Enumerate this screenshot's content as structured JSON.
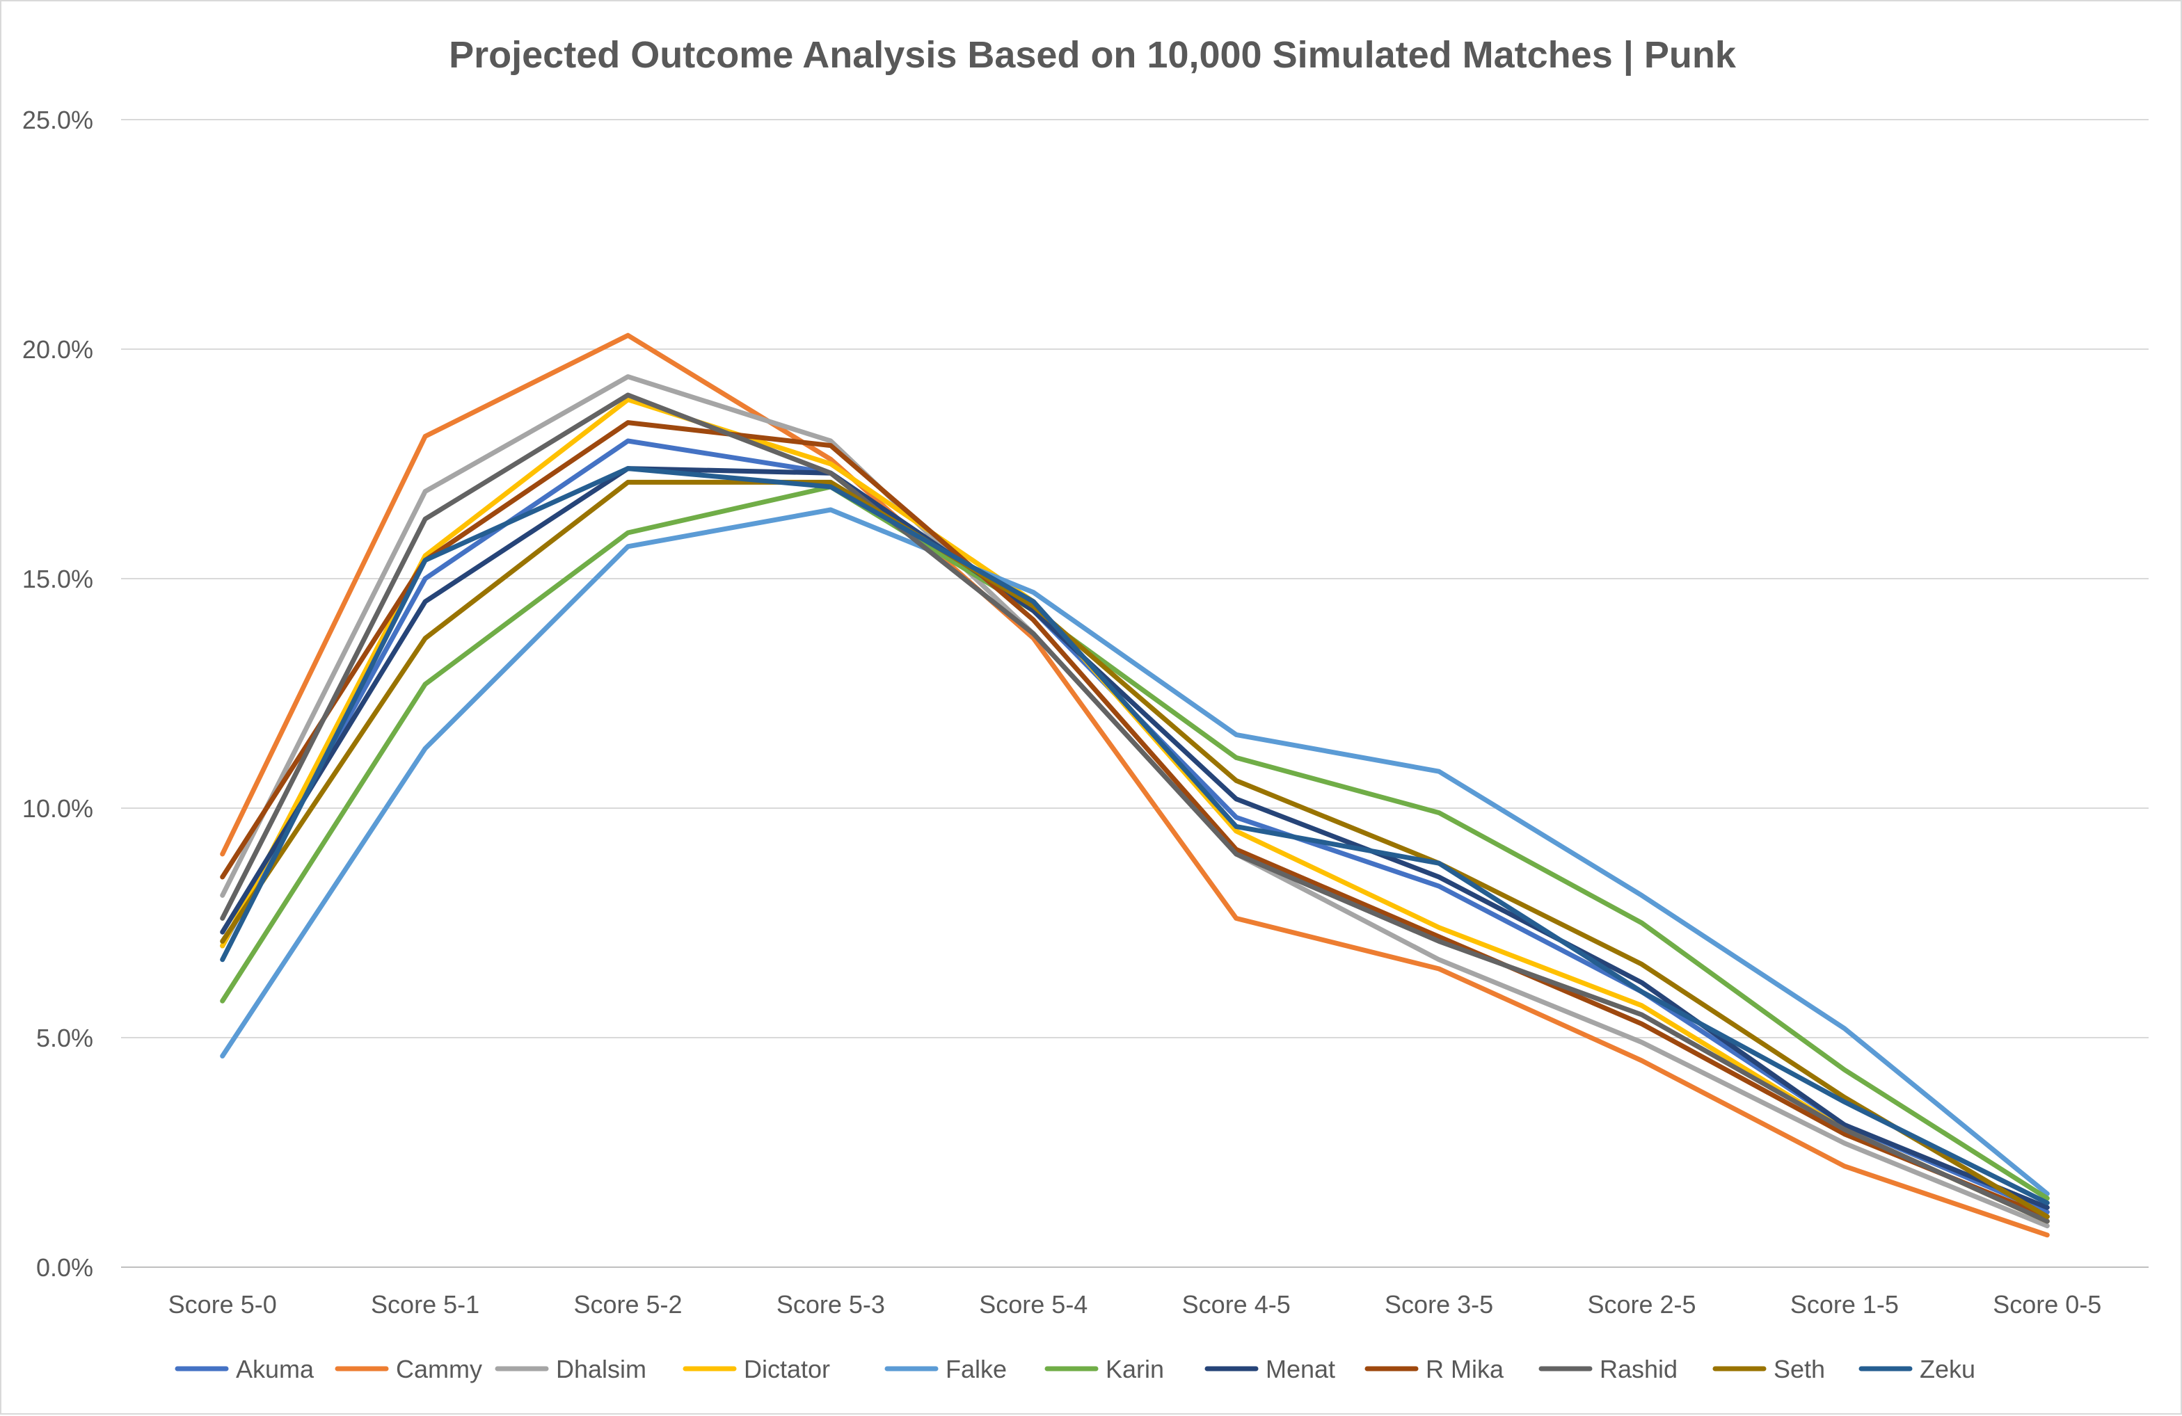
{
  "chart_data": {
    "type": "line",
    "title": "Projected Outcome Analysis Based on 10,000 Simulated Matches | Punk",
    "xlabel": "",
    "ylabel": "",
    "categories": [
      "Score 5-0",
      "Score 5-1",
      "Score 5-2",
      "Score 5-3",
      "Score 5-4",
      "Score 4-5",
      "Score 3-5",
      "Score 2-5",
      "Score 1-5",
      "Score 0-5"
    ],
    "y_ticks": [
      "0.0%",
      "5.0%",
      "10.0%",
      "15.0%",
      "20.0%",
      "25.0%"
    ],
    "ylim": [
      0,
      25
    ],
    "grid": true,
    "legend_position": "bottom",
    "series": [
      {
        "name": "Akuma",
        "color": "#4472C4",
        "values": [
          7.0,
          15.0,
          18.0,
          17.3,
          14.3,
          9.8,
          8.3,
          6.0,
          3.1,
          1.2
        ]
      },
      {
        "name": "Cammy",
        "color": "#ED7D31",
        "values": [
          9.0,
          18.1,
          20.3,
          17.6,
          13.7,
          7.6,
          6.5,
          4.5,
          2.2,
          0.7
        ]
      },
      {
        "name": "Dhalsim",
        "color": "#A5A5A5",
        "values": [
          8.1,
          16.9,
          19.4,
          18.0,
          13.8,
          9.0,
          6.7,
          4.9,
          2.7,
          0.9
        ]
      },
      {
        "name": "Dictator",
        "color": "#FFC000",
        "values": [
          7.0,
          15.5,
          18.9,
          17.5,
          14.5,
          9.5,
          7.4,
          5.7,
          3.0,
          1.0
        ]
      },
      {
        "name": "Falke",
        "color": "#5B9BD5",
        "values": [
          4.6,
          11.3,
          15.7,
          16.5,
          14.7,
          11.6,
          10.8,
          8.1,
          5.2,
          1.6
        ]
      },
      {
        "name": "Karin",
        "color": "#70AD47",
        "values": [
          5.8,
          12.7,
          16.0,
          17.0,
          14.3,
          11.1,
          9.9,
          7.5,
          4.3,
          1.5
        ]
      },
      {
        "name": "Menat",
        "color": "#264478",
        "values": [
          7.3,
          14.5,
          17.4,
          17.3,
          14.3,
          10.2,
          8.5,
          6.2,
          3.1,
          1.3
        ]
      },
      {
        "name": "R Mika",
        "color": "#9E480E",
        "values": [
          8.5,
          15.4,
          18.4,
          17.9,
          14.1,
          9.1,
          7.2,
          5.3,
          2.9,
          1.1
        ]
      },
      {
        "name": "Rashid",
        "color": "#636363",
        "values": [
          7.6,
          16.3,
          19.0,
          17.3,
          13.8,
          9.0,
          7.1,
          5.5,
          3.0,
          1.0
        ]
      },
      {
        "name": "Seth",
        "color": "#997300",
        "values": [
          7.1,
          13.7,
          17.1,
          17.1,
          14.4,
          10.6,
          8.8,
          6.6,
          3.7,
          1.1
        ]
      },
      {
        "name": "Zeku",
        "color": "#255E91",
        "values": [
          6.7,
          15.4,
          17.4,
          17.0,
          14.5,
          9.6,
          8.8,
          6.0,
          3.6,
          1.4
        ]
      }
    ]
  }
}
